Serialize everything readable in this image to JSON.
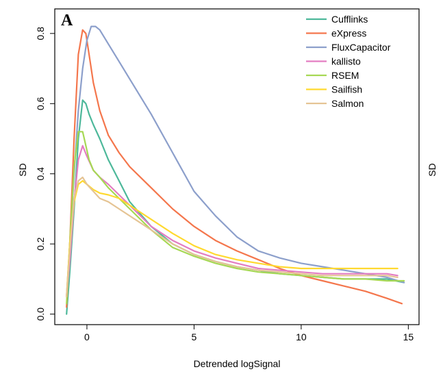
{
  "chart_data": {
    "type": "line",
    "panel_label": "A",
    "xlabel": "Detrended logSignal",
    "ylabel": "SD",
    "right_ylabel": "SD",
    "xlim": [
      -1.5,
      15.5
    ],
    "ylim": [
      -0.03,
      0.87
    ],
    "xticks": [
      0,
      5,
      10,
      15
    ],
    "yticks": [
      0.0,
      0.2,
      0.4,
      0.6,
      0.8
    ],
    "xtick_labels": [
      "0",
      "5",
      "10",
      "15"
    ],
    "ytick_labels": [
      "0.0",
      "0.2",
      "0.4",
      "0.6",
      "0.8"
    ],
    "grid": false,
    "legend_position": "top-right",
    "series": [
      {
        "name": "Cufflinks",
        "color": "#4DB89A",
        "x": [
          -0.95,
          -0.8,
          -0.6,
          -0.4,
          -0.2,
          -0.05,
          0.1,
          0.3,
          0.6,
          1.0,
          1.5,
          2.0,
          3.0,
          4.0,
          5.0,
          6.0,
          7.0,
          8.0,
          9.0,
          10.0,
          11.0,
          12.0,
          13.0,
          14.0,
          14.8
        ],
        "y": [
          0.0,
          0.12,
          0.3,
          0.5,
          0.61,
          0.6,
          0.57,
          0.54,
          0.5,
          0.44,
          0.38,
          0.32,
          0.25,
          0.2,
          0.17,
          0.15,
          0.135,
          0.125,
          0.115,
          0.11,
          0.105,
          0.1,
          0.1,
          0.1,
          0.09
        ]
      },
      {
        "name": "eXpress",
        "color": "#F4764C",
        "x": [
          -0.95,
          -0.8,
          -0.6,
          -0.4,
          -0.2,
          -0.05,
          0.1,
          0.3,
          0.6,
          1.0,
          1.5,
          2.0,
          3.0,
          4.0,
          5.0,
          6.0,
          7.0,
          8.0,
          9.0,
          10.0,
          11.0,
          12.0,
          13.0,
          14.0,
          14.7
        ],
        "y": [
          0.02,
          0.2,
          0.5,
          0.74,
          0.81,
          0.8,
          0.74,
          0.66,
          0.58,
          0.51,
          0.46,
          0.42,
          0.36,
          0.3,
          0.25,
          0.21,
          0.18,
          0.155,
          0.13,
          0.11,
          0.095,
          0.08,
          0.065,
          0.045,
          0.03
        ]
      },
      {
        "name": "FluxCapacitor",
        "color": "#8C9FCB",
        "x": [
          -0.95,
          -0.8,
          -0.6,
          -0.4,
          -0.2,
          0.0,
          0.2,
          0.4,
          0.6,
          1.0,
          1.5,
          2.0,
          3.0,
          4.0,
          5.0,
          6.0,
          7.0,
          8.0,
          9.0,
          10.0,
          11.0,
          12.0,
          13.0,
          14.0,
          14.8
        ],
        "y": [
          0.05,
          0.2,
          0.4,
          0.58,
          0.7,
          0.78,
          0.82,
          0.82,
          0.81,
          0.77,
          0.72,
          0.67,
          0.57,
          0.46,
          0.35,
          0.28,
          0.22,
          0.18,
          0.16,
          0.145,
          0.135,
          0.125,
          0.115,
          0.105,
          0.09
        ]
      },
      {
        "name": "kallisto",
        "color": "#E37DC2",
        "x": [
          -0.95,
          -0.8,
          -0.6,
          -0.4,
          -0.2,
          0.0,
          0.3,
          0.6,
          1.0,
          1.5,
          2.0,
          3.0,
          4.0,
          5.0,
          6.0,
          7.0,
          8.0,
          9.0,
          10.0,
          11.0,
          12.0,
          13.0,
          14.0,
          14.5
        ],
        "y": [
          0.05,
          0.15,
          0.32,
          0.44,
          0.48,
          0.45,
          0.41,
          0.39,
          0.37,
          0.34,
          0.31,
          0.25,
          0.21,
          0.18,
          0.16,
          0.145,
          0.13,
          0.125,
          0.12,
          0.115,
          0.115,
          0.115,
          0.115,
          0.11
        ]
      },
      {
        "name": "RSEM",
        "color": "#A6D854",
        "x": [
          -0.95,
          -0.8,
          -0.6,
          -0.4,
          -0.2,
          -0.05,
          0.1,
          0.3,
          0.6,
          1.0,
          1.5,
          2.0,
          3.0,
          4.0,
          5.0,
          6.0,
          7.0,
          8.0,
          9.0,
          10.0,
          11.0,
          12.0,
          13.0,
          14.0,
          14.8
        ],
        "y": [
          0.03,
          0.2,
          0.42,
          0.52,
          0.52,
          0.48,
          0.44,
          0.41,
          0.39,
          0.36,
          0.33,
          0.3,
          0.24,
          0.19,
          0.165,
          0.145,
          0.13,
          0.12,
          0.115,
          0.11,
          0.105,
          0.1,
          0.1,
          0.095,
          0.095
        ]
      },
      {
        "name": "Sailfish",
        "color": "#FFD92F",
        "x": [
          -0.95,
          -0.8,
          -0.6,
          -0.4,
          -0.2,
          0.0,
          0.3,
          0.6,
          1.0,
          1.5,
          2.0,
          3.0,
          4.0,
          5.0,
          6.0,
          7.0,
          8.0,
          9.0,
          10.0,
          11.0,
          12.0,
          13.0,
          14.0,
          14.5
        ],
        "y": [
          0.05,
          0.2,
          0.32,
          0.37,
          0.38,
          0.37,
          0.355,
          0.345,
          0.34,
          0.33,
          0.31,
          0.27,
          0.23,
          0.195,
          0.17,
          0.155,
          0.145,
          0.135,
          0.13,
          0.13,
          0.13,
          0.13,
          0.13,
          0.13
        ]
      },
      {
        "name": "Salmon",
        "color": "#E5C494",
        "x": [
          -0.95,
          -0.8,
          -0.6,
          -0.4,
          -0.2,
          0.0,
          0.3,
          0.6,
          1.0,
          1.5,
          2.0,
          3.0,
          4.0,
          5.0,
          6.0,
          7.0,
          8.0,
          9.0,
          10.0,
          11.0,
          12.0,
          13.0,
          14.0,
          14.5
        ],
        "y": [
          0.05,
          0.18,
          0.33,
          0.38,
          0.39,
          0.37,
          0.35,
          0.33,
          0.32,
          0.3,
          0.28,
          0.24,
          0.2,
          0.17,
          0.15,
          0.135,
          0.125,
          0.12,
          0.115,
          0.11,
          0.11,
          0.11,
          0.11,
          0.105
        ]
      }
    ]
  }
}
